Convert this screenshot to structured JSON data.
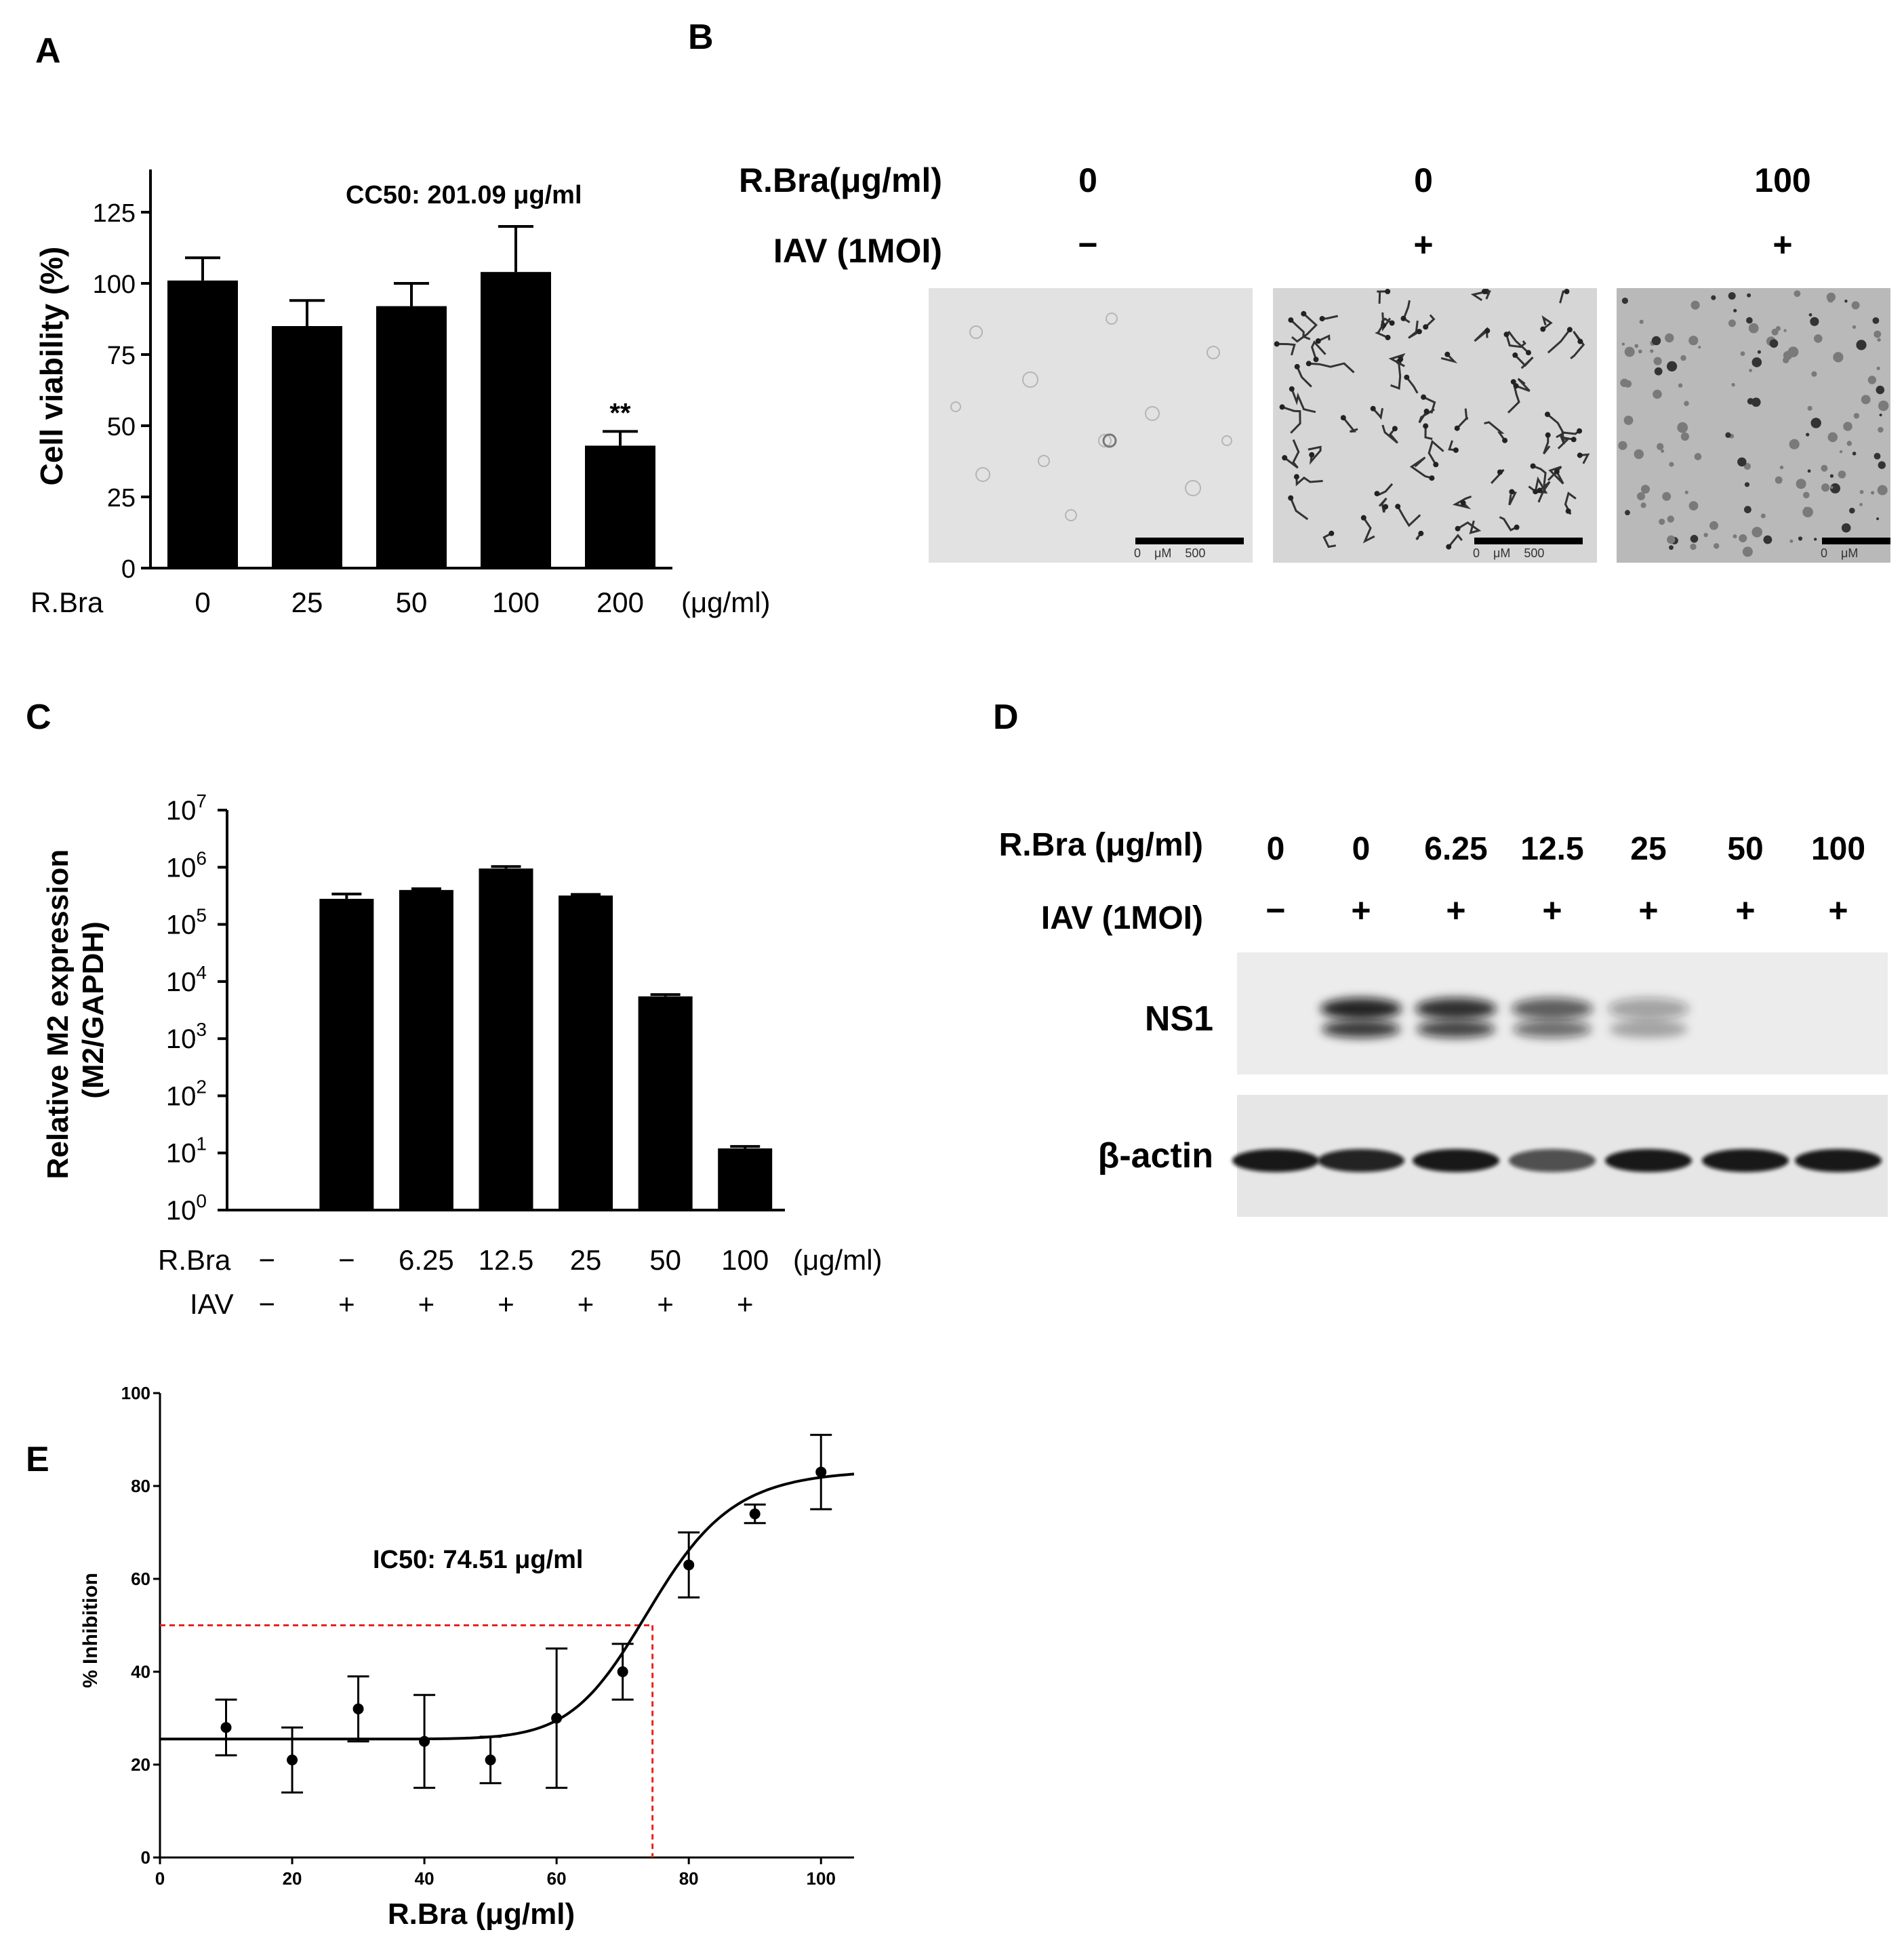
{
  "panel_letters": [
    "A",
    "B",
    "C",
    "D",
    "E"
  ],
  "colors": {
    "bar": "#000000",
    "axis": "#000000",
    "ic50_guide": "#e8231f",
    "blot_bg": "#e9e9e9",
    "micrograph_bg": "#dcdcdc"
  },
  "chart_data": [
    {
      "panel": "A",
      "type": "bar",
      "categories": [
        "0",
        "25",
        "50",
        "100",
        "200"
      ],
      "values": [
        101,
        85,
        92,
        104,
        43
      ],
      "errors": [
        8,
        9,
        8,
        16,
        5
      ],
      "ylabel": "Cell viability (%)",
      "ylim": [
        0,
        140
      ],
      "yticks": [
        0,
        25,
        50,
        75,
        100,
        125
      ],
      "annotation": "CC50: 201.09 μg/ml",
      "significance": {
        "category": "200",
        "mark": "**"
      },
      "x_row_label": "R.Bra",
      "x_unit": "(μg/ml)"
    },
    {
      "panel": "C",
      "type": "bar",
      "log_scale": true,
      "categories": [
        "−",
        "−",
        "6.25",
        "12.5",
        "25",
        "50",
        "100"
      ],
      "values": [
        1,
        280000,
        400000,
        950000,
        320000,
        5500,
        12
      ],
      "errors": [
        0,
        60000,
        20000,
        80000,
        15000,
        400,
        1
      ],
      "ylabel": "Relative M2 expression\n(M2/GAPDH)",
      "ylim_exponents": [
        0,
        7
      ],
      "row_labels": [
        "R.Bra",
        "IAV"
      ],
      "iav_row": [
        "−",
        "+",
        "+",
        "+",
        "+",
        "+",
        "+"
      ],
      "x_unit": "(μg/ml)"
    },
    {
      "panel": "E",
      "type": "scatter",
      "x": [
        10,
        20,
        30,
        40,
        50,
        60,
        70,
        80,
        90,
        100
      ],
      "y": [
        28,
        21,
        32,
        25,
        21,
        30,
        40,
        63,
        74,
        83
      ],
      "errors": [
        6,
        7,
        7,
        10,
        5,
        15,
        6,
        7,
        2,
        8
      ],
      "fit": {
        "bottom": 25.5,
        "top": 83.5,
        "ic50": 74.51,
        "hill": 12
      },
      "xlim": [
        0,
        105
      ],
      "ylim": [
        0,
        100
      ],
      "xticks": [
        0,
        20,
        40,
        60,
        80,
        100
      ],
      "yticks": [
        0,
        20,
        40,
        60,
        80,
        100
      ],
      "xlabel": "R.Bra (μg/ml)",
      "ylabel": "% Inhibition",
      "annotation": "IC50: 74.51 μg/ml",
      "reference_y": 50,
      "reference_x": 74.51
    }
  ],
  "panelB": {
    "row1_label": "R.Bra(μg/ml)",
    "row2_label": "IAV (1MOI)",
    "columns": [
      {
        "dose": "0",
        "iav": "−",
        "scale_text": "0    μM    500"
      },
      {
        "dose": "0",
        "iav": "+",
        "scale_text": "0    μM    500"
      },
      {
        "dose": "100",
        "iav": "+",
        "scale_text": "0    μM"
      }
    ]
  },
  "panelD": {
    "row1_label": "R.Bra (μg/ml)",
    "row2_label": "IAV (1MOI)",
    "doses": [
      "0",
      "0",
      "6.25",
      "12.5",
      "25",
      "50",
      "100"
    ],
    "iav": [
      "−",
      "+",
      "+",
      "+",
      "+",
      "+",
      "+"
    ],
    "blots": [
      {
        "label": "NS1",
        "intensity": [
          0,
          0.9,
          0.85,
          0.65,
          0.35,
          0,
          0
        ]
      },
      {
        "label": "β-actin",
        "intensity": [
          0.95,
          0.9,
          0.95,
          0.7,
          0.95,
          0.95,
          0.95
        ]
      }
    ]
  }
}
